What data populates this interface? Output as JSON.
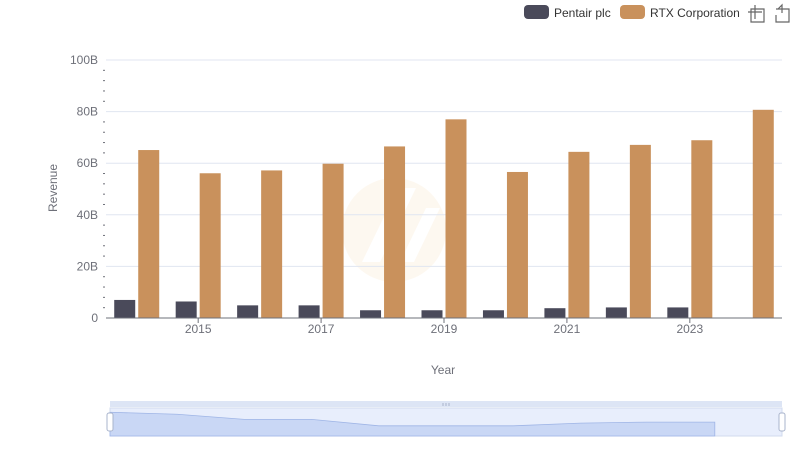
{
  "legend": {
    "items": [
      {
        "name": "Pentair plc",
        "color": "#4a4a5a"
      },
      {
        "name": "RTX Corporation",
        "color": "#c9915c"
      }
    ]
  },
  "toolbox": {
    "zoom_icon": "zoom-select-icon",
    "restore_icon": "restore-icon"
  },
  "chart_data": {
    "type": "bar",
    "xlabel": "Year",
    "ylabel": "Revenue",
    "ylim": [
      0,
      100
    ],
    "y_unit": "B",
    "y_ticks": [
      "0",
      "20B",
      "40B",
      "60B",
      "80B",
      "100B"
    ],
    "x_tick_labels": [
      "2015",
      "2017",
      "2019",
      "2021",
      "2023"
    ],
    "categories": [
      "2014",
      "2015",
      "2016",
      "2017",
      "2018",
      "2019",
      "2020",
      "2021",
      "2022",
      "2023",
      "2024"
    ],
    "series": [
      {
        "name": "Pentair plc",
        "color": "#4a4a5a",
        "values": [
          7.0,
          6.4,
          4.9,
          4.9,
          3.0,
          3.0,
          3.0,
          3.8,
          4.1,
          4.1,
          null
        ]
      },
      {
        "name": "RTX Corporation",
        "color": "#c9915c",
        "values": [
          65.1,
          56.1,
          57.2,
          59.8,
          66.5,
          77.0,
          56.6,
          64.4,
          67.1,
          68.9,
          80.7
        ]
      }
    ],
    "grid": true,
    "legend_position": "top-right"
  }
}
